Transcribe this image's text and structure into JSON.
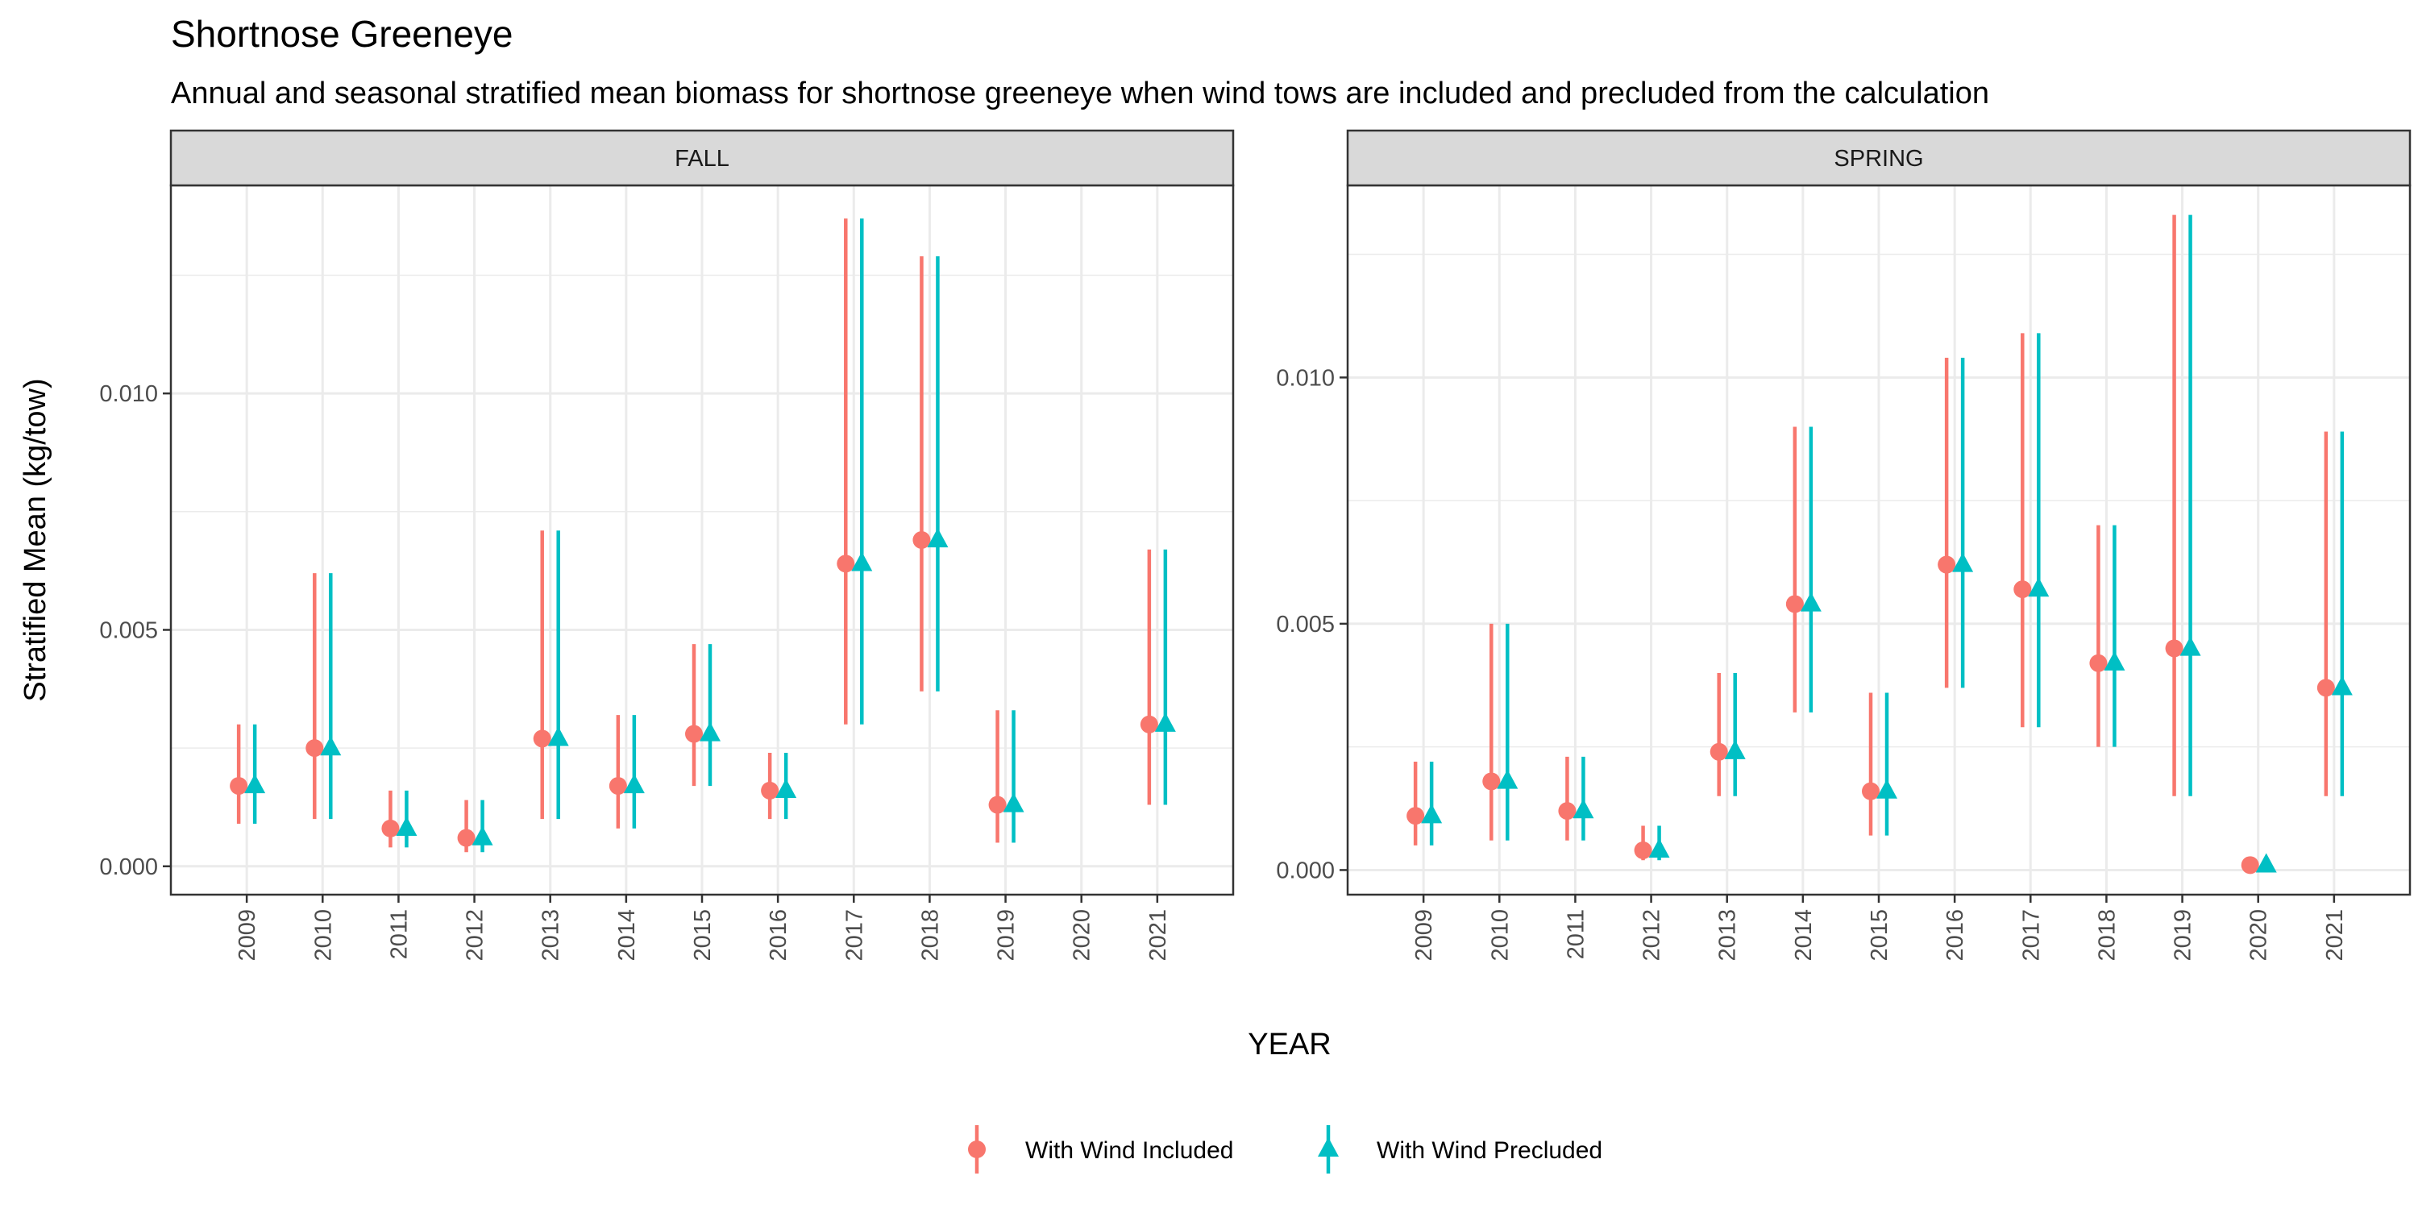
{
  "title": "Shortnose Greeneye",
  "subtitle": "Annual and seasonal stratified mean biomass for shortnose greeneye when wind tows are included and precluded from the calculation",
  "xlabel": "YEAR",
  "ylabel": "Stratified Mean (kg/tow)",
  "colors": {
    "included": "#F8766D",
    "precluded": "#00BFC4",
    "strip_bg": "#D9D9D9",
    "grid": "#EBEBEB"
  },
  "legend": {
    "position": "bottom",
    "items": [
      "With Wind Included",
      "With Wind Precluded"
    ]
  },
  "chart_data": [
    {
      "type": "scatter",
      "panel": "FALL",
      "categories": [
        "2009",
        "2010",
        "2011",
        "2012",
        "2013",
        "2014",
        "2015",
        "2016",
        "2017",
        "2018",
        "2019",
        "2020",
        "2021"
      ],
      "ylim": [
        -0.0006,
        0.0144
      ],
      "yticks": [
        0.0,
        0.005,
        0.01
      ],
      "ytick_labels": [
        "0.000",
        "0.005",
        "0.010"
      ],
      "grid": true,
      "series": [
        {
          "name": "With Wind Included",
          "marker": "circle",
          "values": [
            0.0017,
            0.0025,
            0.0008,
            0.0006,
            0.0027,
            0.0017,
            0.0028,
            0.0016,
            0.0064,
            0.0069,
            0.0013,
            null,
            0.003
          ],
          "lower": [
            0.0009,
            0.001,
            0.0004,
            0.0003,
            0.001,
            0.0008,
            0.0017,
            0.001,
            0.003,
            0.0037,
            0.0005,
            null,
            0.0013
          ],
          "upper": [
            0.003,
            0.0062,
            0.0016,
            0.0014,
            0.0071,
            0.0032,
            0.0047,
            0.0024,
            0.0137,
            0.0129,
            0.0033,
            null,
            0.0067
          ]
        },
        {
          "name": "With Wind Precluded",
          "marker": "triangle",
          "values": [
            0.0017,
            0.0025,
            0.0008,
            0.0006,
            0.0027,
            0.0017,
            0.0028,
            0.0016,
            0.0064,
            0.0069,
            0.0013,
            null,
            0.003
          ],
          "lower": [
            0.0009,
            0.001,
            0.0004,
            0.0003,
            0.001,
            0.0008,
            0.0017,
            0.001,
            0.003,
            0.0037,
            0.0005,
            null,
            0.0013
          ],
          "upper": [
            0.003,
            0.0062,
            0.0016,
            0.0014,
            0.0071,
            0.0032,
            0.0047,
            0.0024,
            0.0137,
            0.0129,
            0.0033,
            null,
            0.0067
          ]
        }
      ]
    },
    {
      "type": "scatter",
      "panel": "SPRING",
      "categories": [
        "2009",
        "2010",
        "2011",
        "2012",
        "2013",
        "2014",
        "2015",
        "2016",
        "2017",
        "2018",
        "2019",
        "2020",
        "2021"
      ],
      "ylim": [
        -0.0005,
        0.0139
      ],
      "yticks": [
        0.0,
        0.005,
        0.01
      ],
      "ytick_labels": [
        "0.000",
        "0.005",
        "0.010"
      ],
      "grid": true,
      "series": [
        {
          "name": "With Wind Included",
          "marker": "circle",
          "values": [
            0.0011,
            0.0018,
            0.0012,
            0.0004,
            0.0024,
            0.0054,
            0.0016,
            0.0062,
            0.0057,
            0.0042,
            0.0045,
            0.0001,
            0.0037
          ],
          "lower": [
            0.0005,
            0.0006,
            0.0006,
            0.0002,
            0.0015,
            0.0032,
            0.0007,
            0.0037,
            0.0029,
            0.0025,
            0.0015,
            null,
            0.0015
          ],
          "upper": [
            0.0022,
            0.005,
            0.0023,
            0.0009,
            0.004,
            0.009,
            0.0036,
            0.0104,
            0.0109,
            0.007,
            0.0133,
            null,
            0.0089
          ]
        },
        {
          "name": "With Wind Precluded",
          "marker": "triangle",
          "values": [
            0.0011,
            0.0018,
            0.0012,
            0.0004,
            0.0024,
            0.0054,
            0.0016,
            0.0062,
            0.0057,
            0.0042,
            0.0045,
            0.0001,
            0.0037
          ],
          "lower": [
            0.0005,
            0.0006,
            0.0006,
            0.0002,
            0.0015,
            0.0032,
            0.0007,
            0.0037,
            0.0029,
            0.0025,
            0.0015,
            null,
            0.0015
          ],
          "upper": [
            0.0022,
            0.005,
            0.0023,
            0.0009,
            0.004,
            0.009,
            0.0036,
            0.0104,
            0.0109,
            0.007,
            0.0133,
            null,
            0.0089
          ]
        }
      ]
    }
  ]
}
